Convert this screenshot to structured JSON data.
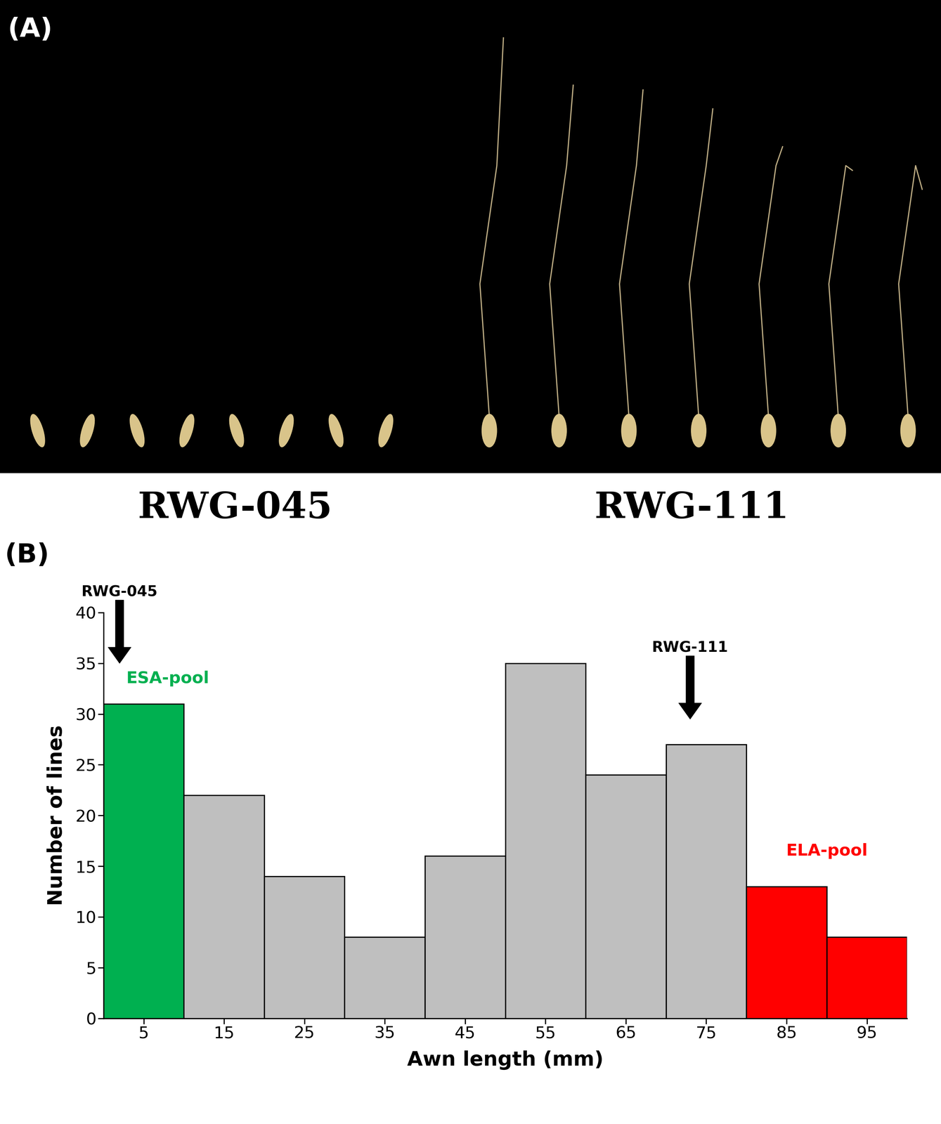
{
  "image_panel": {
    "label": "(A)",
    "samples": [
      "RWG-045",
      "RWG-111"
    ]
  },
  "chart_data": {
    "type": "histogram",
    "panel_label": "(B)",
    "x_label": "Awn length (mm)",
    "y_label": "Number of lines",
    "bins": [
      0,
      10,
      20,
      30,
      40,
      50,
      60,
      70,
      80,
      90,
      100
    ],
    "values": [
      31,
      22,
      14,
      8,
      16,
      35,
      24,
      27,
      13,
      8
    ],
    "colors": [
      "#00b050",
      "#bfbfbf",
      "#bfbfbf",
      "#bfbfbf",
      "#bfbfbf",
      "#bfbfbf",
      "#bfbfbf",
      "#bfbfbf",
      "#ff0000",
      "#ff0000"
    ],
    "xlim": [
      0,
      100
    ],
    "xticks": [
      5,
      15,
      25,
      35,
      45,
      55,
      65,
      75,
      85,
      95
    ],
    "ylim": [
      0,
      40
    ],
    "yticks": [
      0,
      5,
      10,
      15,
      20,
      25,
      30,
      35,
      40
    ],
    "arrows": [
      {
        "text": "RWG-045",
        "x": 2,
        "y": 35
      },
      {
        "text": "RWG-111",
        "x": 73,
        "y": 29.5
      }
    ],
    "annotations": [
      {
        "text": "ESA-pool",
        "x": 8,
        "y": 33.5,
        "color": "#00b050"
      },
      {
        "text": "ELA-pool",
        "x": 90,
        "y": 16.5,
        "color": "#ff0000"
      }
    ]
  }
}
